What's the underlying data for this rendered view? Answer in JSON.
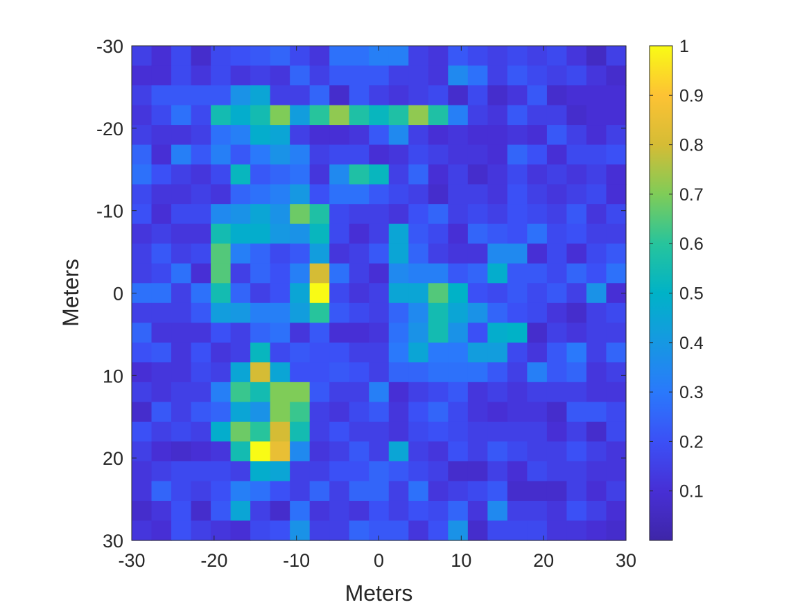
{
  "chart_data": {
    "type": "heatmap",
    "xlabel": "Meters",
    "ylabel": "Meters",
    "xlim": [
      -30,
      30
    ],
    "ylim": [
      -30,
      30
    ],
    "y_direction": "reversed",
    "x_ticks": [
      -30,
      -20,
      -10,
      0,
      10,
      20,
      30
    ],
    "x_tick_labels": [
      "-30",
      "-20",
      "-10",
      "0",
      "10",
      "20",
      "30"
    ],
    "y_ticks": [
      -30,
      -20,
      -10,
      0,
      10,
      20,
      30
    ],
    "y_tick_labels": [
      "-30",
      "-20",
      "-10",
      "0",
      "10",
      "20",
      "30"
    ],
    "colormap": "parula",
    "clim": [
      0,
      1
    ],
    "colorbar": {
      "ticks": [
        0.1,
        0.2,
        0.3,
        0.4,
        0.5,
        0.6,
        0.7,
        0.8,
        0.9,
        1
      ],
      "tick_labels": [
        "0.1",
        "0.2",
        "0.3",
        "0.4",
        "0.5",
        "0.6",
        "0.7",
        "0.8",
        "0.9",
        "1"
      ]
    },
    "grid": "off",
    "cell_size_m": 2.4,
    "rows": 25,
    "cols": 25,
    "values": [
      [
        0.15,
        0.1,
        0.18,
        0.08,
        0.18,
        0.2,
        0.22,
        0.25,
        0.18,
        0.12,
        0.28,
        0.28,
        0.32,
        0.32,
        0.15,
        0.12,
        0.22,
        0.18,
        0.15,
        0.18,
        0.15,
        0.18,
        0.12,
        0.06,
        0.15
      ],
      [
        0.1,
        0.1,
        0.18,
        0.12,
        0.18,
        0.12,
        0.15,
        0.12,
        0.25,
        0.15,
        0.22,
        0.22,
        0.22,
        0.15,
        0.15,
        0.12,
        0.35,
        0.28,
        0.15,
        0.22,
        0.18,
        0.15,
        0.18,
        0.12,
        0.08
      ],
      [
        0.15,
        0.22,
        0.22,
        0.22,
        0.22,
        0.38,
        0.45,
        0.15,
        0.15,
        0.25,
        0.08,
        0.22,
        0.15,
        0.12,
        0.15,
        0.18,
        0.08,
        0.18,
        0.08,
        0.12,
        0.22,
        0.08,
        0.1,
        0.1,
        0.1
      ],
      [
        0.12,
        0.18,
        0.28,
        0.18,
        0.55,
        0.48,
        0.55,
        0.7,
        0.42,
        0.6,
        0.72,
        0.58,
        0.52,
        0.58,
        0.72,
        0.58,
        0.32,
        0.15,
        0.12,
        0.22,
        0.15,
        0.15,
        0.08,
        0.1,
        0.1
      ],
      [
        0.15,
        0.12,
        0.12,
        0.15,
        0.28,
        0.32,
        0.48,
        0.45,
        0.15,
        0.1,
        0.1,
        0.12,
        0.22,
        0.35,
        0.15,
        0.1,
        0.12,
        0.1,
        0.1,
        0.12,
        0.1,
        0.22,
        0.15,
        0.1,
        0.15
      ],
      [
        0.25,
        0.1,
        0.32,
        0.22,
        0.32,
        0.22,
        0.3,
        0.38,
        0.32,
        0.15,
        0.18,
        0.18,
        0.1,
        0.12,
        0.18,
        0.15,
        0.12,
        0.12,
        0.1,
        0.25,
        0.2,
        0.1,
        0.18,
        0.18,
        0.2
      ],
      [
        0.28,
        0.2,
        0.15,
        0.12,
        0.18,
        0.52,
        0.22,
        0.25,
        0.28,
        0.12,
        0.35,
        0.58,
        0.52,
        0.15,
        0.25,
        0.1,
        0.15,
        0.08,
        0.12,
        0.18,
        0.12,
        0.15,
        0.12,
        0.15,
        0.1
      ],
      [
        0.18,
        0.12,
        0.12,
        0.15,
        0.12,
        0.25,
        0.28,
        0.32,
        0.4,
        0.2,
        0.28,
        0.28,
        0.22,
        0.18,
        0.15,
        0.08,
        0.15,
        0.15,
        0.12,
        0.2,
        0.15,
        0.12,
        0.15,
        0.18,
        0.1
      ],
      [
        0.2,
        0.1,
        0.18,
        0.18,
        0.35,
        0.38,
        0.45,
        0.38,
        0.68,
        0.58,
        0.18,
        0.15,
        0.15,
        0.12,
        0.2,
        0.25,
        0.15,
        0.18,
        0.15,
        0.2,
        0.18,
        0.15,
        0.22,
        0.12,
        0.18
      ],
      [
        0.12,
        0.15,
        0.12,
        0.12,
        0.55,
        0.48,
        0.48,
        0.4,
        0.38,
        0.52,
        0.18,
        0.1,
        0.15,
        0.45,
        0.22,
        0.18,
        0.1,
        0.25,
        0.22,
        0.2,
        0.28,
        0.18,
        0.2,
        0.15,
        0.15
      ],
      [
        0.15,
        0.22,
        0.15,
        0.18,
        0.65,
        0.32,
        0.25,
        0.18,
        0.22,
        0.42,
        0.12,
        0.15,
        0.22,
        0.45,
        0.25,
        0.15,
        0.12,
        0.12,
        0.35,
        0.35,
        0.1,
        0.18,
        0.1,
        0.18,
        0.22
      ],
      [
        0.15,
        0.18,
        0.28,
        0.1,
        0.65,
        0.15,
        0.25,
        0.2,
        0.32,
        0.8,
        0.28,
        0.15,
        0.1,
        0.35,
        0.32,
        0.32,
        0.22,
        0.25,
        0.48,
        0.22,
        0.22,
        0.18,
        0.25,
        0.2,
        0.28
      ],
      [
        0.28,
        0.28,
        0.15,
        0.28,
        0.55,
        0.25,
        0.15,
        0.2,
        0.45,
        1.0,
        0.18,
        0.12,
        0.15,
        0.45,
        0.45,
        0.65,
        0.5,
        0.2,
        0.18,
        0.22,
        0.18,
        0.22,
        0.15,
        0.38,
        0.1
      ],
      [
        0.15,
        0.15,
        0.15,
        0.22,
        0.42,
        0.4,
        0.32,
        0.32,
        0.42,
        0.6,
        0.22,
        0.18,
        0.15,
        0.25,
        0.35,
        0.55,
        0.45,
        0.38,
        0.25,
        0.2,
        0.18,
        0.12,
        0.08,
        0.15,
        0.18
      ],
      [
        0.25,
        0.12,
        0.12,
        0.12,
        0.2,
        0.15,
        0.25,
        0.28,
        0.12,
        0.22,
        0.1,
        0.1,
        0.12,
        0.28,
        0.38,
        0.55,
        0.38,
        0.2,
        0.48,
        0.5,
        0.08,
        0.15,
        0.12,
        0.15,
        0.15
      ],
      [
        0.2,
        0.22,
        0.12,
        0.2,
        0.12,
        0.15,
        0.52,
        0.18,
        0.22,
        0.2,
        0.2,
        0.15,
        0.15,
        0.3,
        0.45,
        0.3,
        0.3,
        0.42,
        0.42,
        0.18,
        0.12,
        0.22,
        0.3,
        0.15,
        0.25
      ],
      [
        0.1,
        0.12,
        0.12,
        0.18,
        0.15,
        0.45,
        0.8,
        0.45,
        0.2,
        0.2,
        0.22,
        0.2,
        0.15,
        0.25,
        0.25,
        0.28,
        0.28,
        0.28,
        0.22,
        0.15,
        0.32,
        0.22,
        0.25,
        0.12,
        0.15
      ],
      [
        0.15,
        0.12,
        0.15,
        0.15,
        0.32,
        0.62,
        0.55,
        0.7,
        0.7,
        0.22,
        0.15,
        0.15,
        0.32,
        0.1,
        0.15,
        0.18,
        0.22,
        0.12,
        0.15,
        0.12,
        0.15,
        0.15,
        0.15,
        0.12,
        0.12
      ],
      [
        0.08,
        0.22,
        0.15,
        0.22,
        0.25,
        0.45,
        0.38,
        0.7,
        0.62,
        0.15,
        0.12,
        0.18,
        0.22,
        0.12,
        0.2,
        0.25,
        0.18,
        0.12,
        0.1,
        0.12,
        0.12,
        0.08,
        0.22,
        0.22,
        0.18
      ],
      [
        0.2,
        0.15,
        0.18,
        0.15,
        0.48,
        0.68,
        0.6,
        0.8,
        0.55,
        0.15,
        0.2,
        0.15,
        0.15,
        0.12,
        0.18,
        0.2,
        0.18,
        0.15,
        0.15,
        0.15,
        0.15,
        0.1,
        0.15,
        0.08,
        0.18
      ],
      [
        0.15,
        0.1,
        0.08,
        0.1,
        0.12,
        0.55,
        1.0,
        0.85,
        0.35,
        0.12,
        0.15,
        0.22,
        0.15,
        0.45,
        0.15,
        0.12,
        0.2,
        0.15,
        0.22,
        0.18,
        0.15,
        0.15,
        0.2,
        0.15,
        0.12
      ],
      [
        0.12,
        0.15,
        0.18,
        0.18,
        0.18,
        0.15,
        0.48,
        0.45,
        0.15,
        0.15,
        0.2,
        0.2,
        0.25,
        0.22,
        0.18,
        0.15,
        0.08,
        0.08,
        0.15,
        0.1,
        0.18,
        0.15,
        0.15,
        0.12,
        0.12
      ],
      [
        0.12,
        0.25,
        0.18,
        0.15,
        0.2,
        0.32,
        0.28,
        0.2,
        0.15,
        0.25,
        0.15,
        0.25,
        0.25,
        0.15,
        0.28,
        0.12,
        0.15,
        0.18,
        0.22,
        0.08,
        0.08,
        0.08,
        0.15,
        0.1,
        0.15
      ],
      [
        0.08,
        0.12,
        0.2,
        0.08,
        0.22,
        0.45,
        0.15,
        0.08,
        0.28,
        0.12,
        0.15,
        0.12,
        0.2,
        0.15,
        0.2,
        0.18,
        0.25,
        0.12,
        0.35,
        0.15,
        0.15,
        0.12,
        0.2,
        0.15,
        0.1
      ],
      [
        0.12,
        0.1,
        0.2,
        0.15,
        0.12,
        0.1,
        0.18,
        0.2,
        0.38,
        0.15,
        0.15,
        0.25,
        0.22,
        0.22,
        0.12,
        0.2,
        0.38,
        0.08,
        0.18,
        0.18,
        0.18,
        0.12,
        0.12,
        0.1,
        0.08
      ]
    ]
  }
}
